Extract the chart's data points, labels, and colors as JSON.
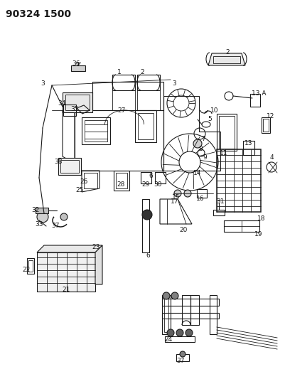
{
  "title": "90324 1500",
  "bg_color": "#ffffff",
  "line_color": "#1a1a1a",
  "fig_width": 4.01,
  "fig_height": 5.33,
  "dpi": 100,
  "label_fontsize": 6.5,
  "title_fontsize": 10
}
